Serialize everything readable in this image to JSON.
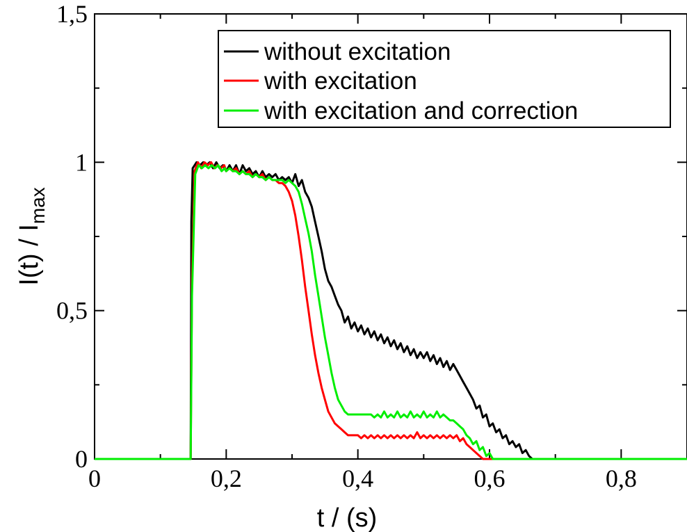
{
  "chart_data": {
    "type": "line",
    "xlabel": "t / (s)",
    "ylabel": {
      "main": "I(t) / I",
      "subscript": "max"
    },
    "xlim": [
      0,
      0.9
    ],
    "ylim": [
      0,
      1.5
    ],
    "x_ticks": [
      {
        "value": 0,
        "label": "0"
      },
      {
        "value": 0.2,
        "label": "0,2"
      },
      {
        "value": 0.4,
        "label": "0,4"
      },
      {
        "value": 0.6,
        "label": "0,6"
      },
      {
        "value": 0.8,
        "label": "0,8"
      }
    ],
    "x_minor_ticks": [
      0.1,
      0.3,
      0.5,
      0.7
    ],
    "y_ticks": [
      {
        "value": 0,
        "label": "0"
      },
      {
        "value": 0.5,
        "label": "0,5"
      },
      {
        "value": 1,
        "label": "1"
      },
      {
        "value": 1.5,
        "label": "1,5"
      }
    ],
    "y_minor_ticks": [
      0.25,
      0.75,
      1.25
    ],
    "grid": false,
    "legend_position": "top-right",
    "series": [
      {
        "name": "without excitation",
        "color": "#000000",
        "points": [
          [
            0,
            0
          ],
          [
            0.146,
            0
          ],
          [
            0.147,
            0.8
          ],
          [
            0.149,
            0.98
          ],
          [
            0.155,
            1.0
          ],
          [
            0.16,
            0.99
          ],
          [
            0.165,
            1.0
          ],
          [
            0.17,
            0.99
          ],
          [
            0.175,
            1.0
          ],
          [
            0.18,
            0.98
          ],
          [
            0.185,
            1.0
          ],
          [
            0.19,
            0.98
          ],
          [
            0.195,
            0.99
          ],
          [
            0.2,
            0.97
          ],
          [
            0.205,
            0.99
          ],
          [
            0.21,
            0.97
          ],
          [
            0.215,
            0.99
          ],
          [
            0.22,
            0.96
          ],
          [
            0.225,
            0.99
          ],
          [
            0.23,
            0.97
          ],
          [
            0.235,
            0.98
          ],
          [
            0.24,
            0.96
          ],
          [
            0.245,
            0.97
          ],
          [
            0.25,
            0.95
          ],
          [
            0.255,
            0.97
          ],
          [
            0.26,
            0.95
          ],
          [
            0.265,
            0.96
          ],
          [
            0.27,
            0.95
          ],
          [
            0.275,
            0.96
          ],
          [
            0.28,
            0.94
          ],
          [
            0.285,
            0.95
          ],
          [
            0.29,
            0.94
          ],
          [
            0.295,
            0.95
          ],
          [
            0.3,
            0.93
          ],
          [
            0.305,
            0.96
          ],
          [
            0.31,
            0.92
          ],
          [
            0.315,
            0.94
          ],
          [
            0.32,
            0.9
          ],
          [
            0.325,
            0.88
          ],
          [
            0.33,
            0.85
          ],
          [
            0.335,
            0.8
          ],
          [
            0.34,
            0.75
          ],
          [
            0.345,
            0.7
          ],
          [
            0.35,
            0.64
          ],
          [
            0.355,
            0.6
          ],
          [
            0.36,
            0.58
          ],
          [
            0.365,
            0.55
          ],
          [
            0.37,
            0.52
          ],
          [
            0.375,
            0.5
          ],
          [
            0.38,
            0.46
          ],
          [
            0.385,
            0.48
          ],
          [
            0.39,
            0.44
          ],
          [
            0.395,
            0.46
          ],
          [
            0.4,
            0.43
          ],
          [
            0.405,
            0.45
          ],
          [
            0.41,
            0.42
          ],
          [
            0.415,
            0.44
          ],
          [
            0.42,
            0.41
          ],
          [
            0.425,
            0.43
          ],
          [
            0.43,
            0.4
          ],
          [
            0.435,
            0.42
          ],
          [
            0.44,
            0.39
          ],
          [
            0.445,
            0.41
          ],
          [
            0.45,
            0.38
          ],
          [
            0.455,
            0.4
          ],
          [
            0.46,
            0.37
          ],
          [
            0.465,
            0.39
          ],
          [
            0.47,
            0.36
          ],
          [
            0.475,
            0.38
          ],
          [
            0.48,
            0.35
          ],
          [
            0.485,
            0.37
          ],
          [
            0.49,
            0.34
          ],
          [
            0.495,
            0.36
          ],
          [
            0.5,
            0.34
          ],
          [
            0.505,
            0.36
          ],
          [
            0.51,
            0.33
          ],
          [
            0.515,
            0.35
          ],
          [
            0.52,
            0.32
          ],
          [
            0.525,
            0.34
          ],
          [
            0.53,
            0.31
          ],
          [
            0.535,
            0.33
          ],
          [
            0.54,
            0.3
          ],
          [
            0.545,
            0.32
          ],
          [
            0.55,
            0.3
          ],
          [
            0.555,
            0.28
          ],
          [
            0.56,
            0.26
          ],
          [
            0.565,
            0.24
          ],
          [
            0.57,
            0.22
          ],
          [
            0.575,
            0.2
          ],
          [
            0.58,
            0.17
          ],
          [
            0.585,
            0.18
          ],
          [
            0.59,
            0.14
          ],
          [
            0.595,
            0.15
          ],
          [
            0.6,
            0.11
          ],
          [
            0.605,
            0.12
          ],
          [
            0.61,
            0.09
          ],
          [
            0.615,
            0.1
          ],
          [
            0.62,
            0.07
          ],
          [
            0.625,
            0.08
          ],
          [
            0.63,
            0.05
          ],
          [
            0.635,
            0.06
          ],
          [
            0.64,
            0.04
          ],
          [
            0.645,
            0.05
          ],
          [
            0.65,
            0.02
          ],
          [
            0.655,
            0.03
          ],
          [
            0.66,
            0.01
          ],
          [
            0.665,
            0.0
          ],
          [
            0.9,
            0
          ]
        ]
      },
      {
        "name": "with excitation",
        "color": "#ff0000",
        "points": [
          [
            0,
            0
          ],
          [
            0.146,
            0
          ],
          [
            0.148,
            0.6
          ],
          [
            0.152,
            0.97
          ],
          [
            0.157,
            1.0
          ],
          [
            0.162,
            0.98
          ],
          [
            0.167,
            1.0
          ],
          [
            0.172,
            0.99
          ],
          [
            0.177,
            1.0
          ],
          [
            0.182,
            0.98
          ],
          [
            0.187,
            0.99
          ],
          [
            0.192,
            0.98
          ],
          [
            0.197,
            0.99
          ],
          [
            0.2,
            0.97
          ],
          [
            0.205,
            0.98
          ],
          [
            0.21,
            0.97
          ],
          [
            0.215,
            0.98
          ],
          [
            0.22,
            0.96
          ],
          [
            0.225,
            0.97
          ],
          [
            0.23,
            0.96
          ],
          [
            0.235,
            0.97
          ],
          [
            0.24,
            0.95
          ],
          [
            0.245,
            0.96
          ],
          [
            0.25,
            0.95
          ],
          [
            0.255,
            0.96
          ],
          [
            0.26,
            0.94
          ],
          [
            0.265,
            0.95
          ],
          [
            0.27,
            0.94
          ],
          [
            0.275,
            0.94
          ],
          [
            0.28,
            0.93
          ],
          [
            0.285,
            0.93
          ],
          [
            0.29,
            0.92
          ],
          [
            0.295,
            0.9
          ],
          [
            0.3,
            0.87
          ],
          [
            0.305,
            0.82
          ],
          [
            0.31,
            0.75
          ],
          [
            0.315,
            0.67
          ],
          [
            0.32,
            0.58
          ],
          [
            0.325,
            0.5
          ],
          [
            0.33,
            0.42
          ],
          [
            0.335,
            0.35
          ],
          [
            0.34,
            0.29
          ],
          [
            0.345,
            0.24
          ],
          [
            0.35,
            0.2
          ],
          [
            0.355,
            0.16
          ],
          [
            0.36,
            0.14
          ],
          [
            0.365,
            0.12
          ],
          [
            0.37,
            0.11
          ],
          [
            0.375,
            0.1
          ],
          [
            0.38,
            0.09
          ],
          [
            0.385,
            0.08
          ],
          [
            0.39,
            0.08
          ],
          [
            0.395,
            0.08
          ],
          [
            0.4,
            0.08
          ],
          [
            0.405,
            0.07
          ],
          [
            0.41,
            0.08
          ],
          [
            0.415,
            0.07
          ],
          [
            0.42,
            0.08
          ],
          [
            0.425,
            0.07
          ],
          [
            0.43,
            0.08
          ],
          [
            0.435,
            0.07
          ],
          [
            0.44,
            0.08
          ],
          [
            0.445,
            0.07
          ],
          [
            0.45,
            0.08
          ],
          [
            0.455,
            0.07
          ],
          [
            0.46,
            0.08
          ],
          [
            0.465,
            0.07
          ],
          [
            0.47,
            0.08
          ],
          [
            0.475,
            0.07
          ],
          [
            0.48,
            0.08
          ],
          [
            0.485,
            0.07
          ],
          [
            0.49,
            0.09
          ],
          [
            0.495,
            0.07
          ],
          [
            0.5,
            0.08
          ],
          [
            0.505,
            0.07
          ],
          [
            0.51,
            0.08
          ],
          [
            0.515,
            0.07
          ],
          [
            0.52,
            0.08
          ],
          [
            0.525,
            0.07
          ],
          [
            0.53,
            0.08
          ],
          [
            0.535,
            0.07
          ],
          [
            0.54,
            0.08
          ],
          [
            0.545,
            0.07
          ],
          [
            0.55,
            0.08
          ],
          [
            0.555,
            0.06
          ],
          [
            0.56,
            0.07
          ],
          [
            0.565,
            0.05
          ],
          [
            0.57,
            0.04
          ],
          [
            0.575,
            0.03
          ],
          [
            0.58,
            0.02
          ],
          [
            0.585,
            0.01
          ],
          [
            0.59,
            0.0
          ],
          [
            0.9,
            0
          ]
        ]
      },
      {
        "name": "with excitation and correction",
        "color": "#00ee00",
        "points": [
          [
            0,
            0
          ],
          [
            0.146,
            0
          ],
          [
            0.148,
            0.55
          ],
          [
            0.153,
            0.96
          ],
          [
            0.158,
            0.99
          ],
          [
            0.163,
            0.98
          ],
          [
            0.168,
            0.99
          ],
          [
            0.173,
            0.98
          ],
          [
            0.178,
            0.99
          ],
          [
            0.183,
            0.98
          ],
          [
            0.188,
            0.99
          ],
          [
            0.193,
            0.97
          ],
          [
            0.198,
            0.98
          ],
          [
            0.2,
            0.97
          ],
          [
            0.205,
            0.98
          ],
          [
            0.21,
            0.97
          ],
          [
            0.215,
            0.97
          ],
          [
            0.22,
            0.96
          ],
          [
            0.225,
            0.97
          ],
          [
            0.23,
            0.96
          ],
          [
            0.235,
            0.96
          ],
          [
            0.24,
            0.95
          ],
          [
            0.245,
            0.96
          ],
          [
            0.25,
            0.95
          ],
          [
            0.255,
            0.95
          ],
          [
            0.26,
            0.94
          ],
          [
            0.265,
            0.95
          ],
          [
            0.27,
            0.94
          ],
          [
            0.275,
            0.94
          ],
          [
            0.28,
            0.94
          ],
          [
            0.285,
            0.94
          ],
          [
            0.29,
            0.93
          ],
          [
            0.295,
            0.94
          ],
          [
            0.3,
            0.93
          ],
          [
            0.305,
            0.92
          ],
          [
            0.31,
            0.9
          ],
          [
            0.315,
            0.86
          ],
          [
            0.32,
            0.81
          ],
          [
            0.325,
            0.76
          ],
          [
            0.33,
            0.7
          ],
          [
            0.335,
            0.62
          ],
          [
            0.34,
            0.55
          ],
          [
            0.345,
            0.48
          ],
          [
            0.35,
            0.41
          ],
          [
            0.355,
            0.35
          ],
          [
            0.36,
            0.29
          ],
          [
            0.365,
            0.24
          ],
          [
            0.37,
            0.2
          ],
          [
            0.375,
            0.18
          ],
          [
            0.38,
            0.16
          ],
          [
            0.385,
            0.15
          ],
          [
            0.39,
            0.15
          ],
          [
            0.4,
            0.15
          ],
          [
            0.41,
            0.15
          ],
          [
            0.42,
            0.15
          ],
          [
            0.425,
            0.14
          ],
          [
            0.43,
            0.15
          ],
          [
            0.435,
            0.14
          ],
          [
            0.44,
            0.16
          ],
          [
            0.445,
            0.14
          ],
          [
            0.45,
            0.15
          ],
          [
            0.455,
            0.14
          ],
          [
            0.46,
            0.16
          ],
          [
            0.465,
            0.14
          ],
          [
            0.47,
            0.15
          ],
          [
            0.475,
            0.14
          ],
          [
            0.48,
            0.16
          ],
          [
            0.485,
            0.14
          ],
          [
            0.49,
            0.15
          ],
          [
            0.495,
            0.14
          ],
          [
            0.5,
            0.16
          ],
          [
            0.505,
            0.14
          ],
          [
            0.51,
            0.15
          ],
          [
            0.515,
            0.14
          ],
          [
            0.52,
            0.16
          ],
          [
            0.525,
            0.14
          ],
          [
            0.53,
            0.15
          ],
          [
            0.535,
            0.14
          ],
          [
            0.54,
            0.13
          ],
          [
            0.545,
            0.13
          ],
          [
            0.55,
            0.12
          ],
          [
            0.555,
            0.11
          ],
          [
            0.56,
            0.1
          ],
          [
            0.565,
            0.08
          ],
          [
            0.57,
            0.07
          ],
          [
            0.575,
            0.05
          ],
          [
            0.58,
            0.06
          ],
          [
            0.585,
            0.03
          ],
          [
            0.59,
            0.04
          ],
          [
            0.595,
            0.01
          ],
          [
            0.6,
            0.02
          ],
          [
            0.605,
            0.0
          ],
          [
            0.9,
            0
          ]
        ]
      }
    ]
  }
}
